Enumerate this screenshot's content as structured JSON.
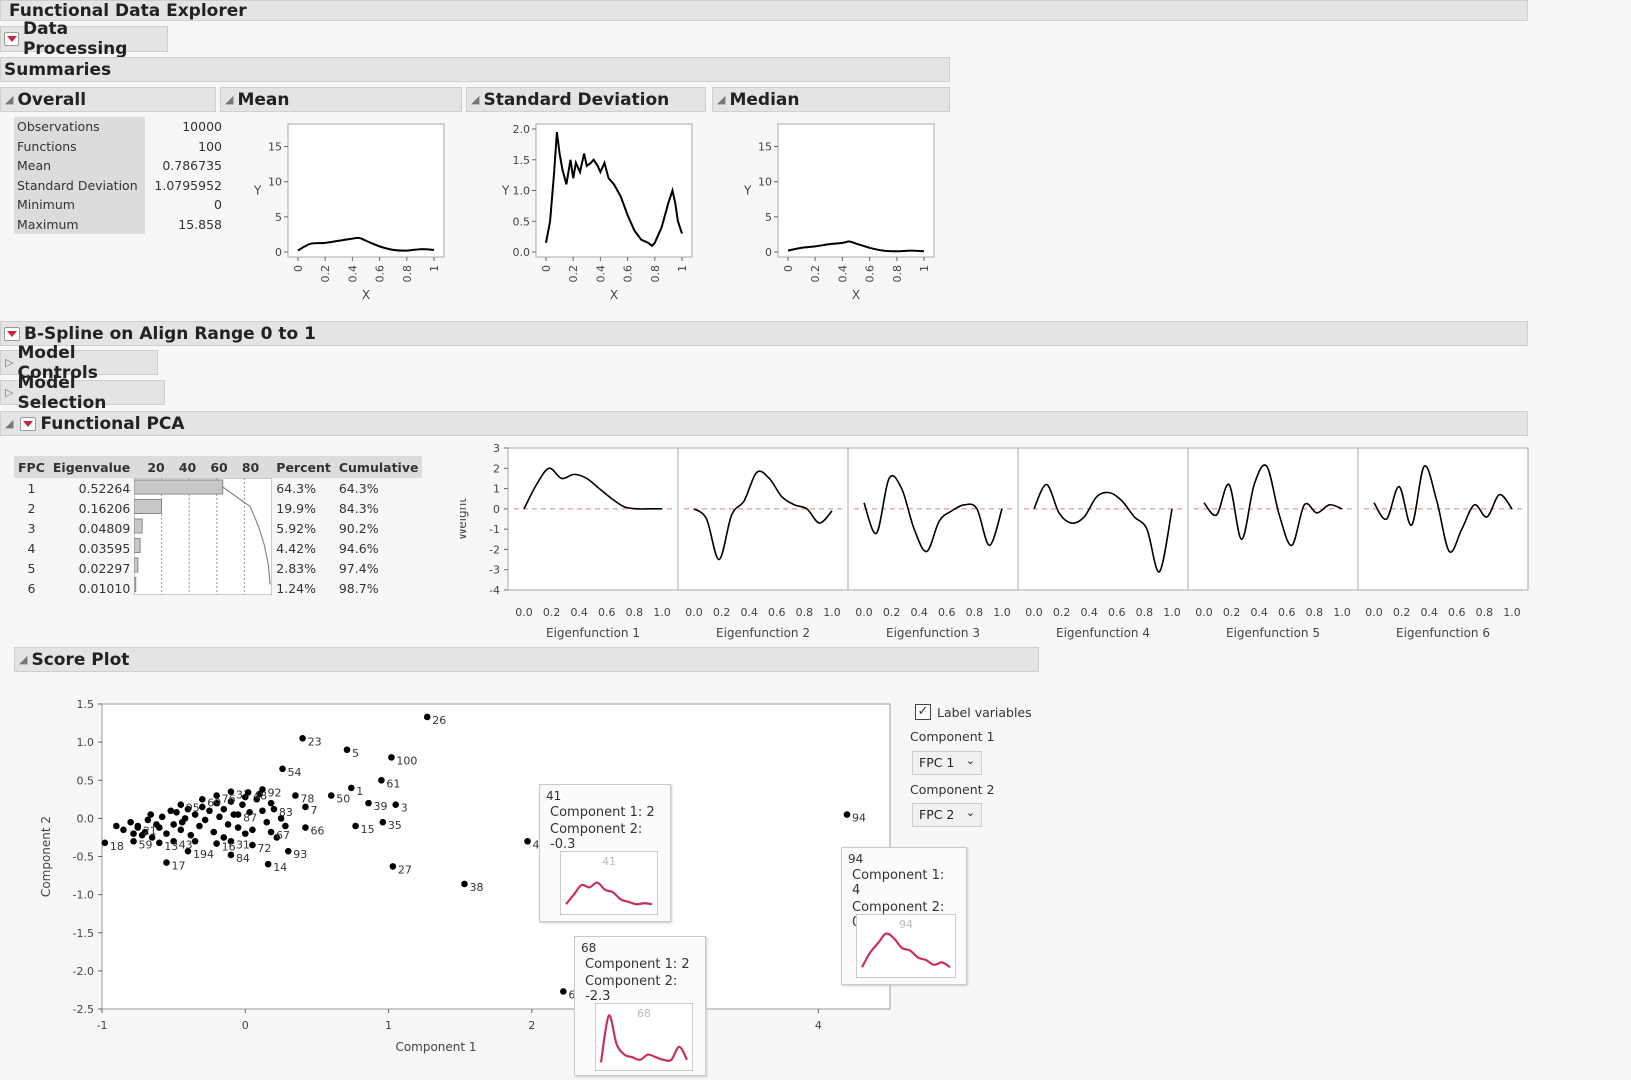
{
  "sections": {
    "fde": "Functional Data Explorer",
    "data_processing": "Data Processing",
    "summaries": "Summaries",
    "overall": "Overall",
    "mean": "Mean",
    "sd": "Standard Deviation",
    "median": "Median",
    "bspline": "B-Spline on Align Range 0 to 1",
    "model_controls": "Model Controls",
    "model_selection": "Model Selection",
    "fpca": "Functional PCA",
    "score_plot": "Score Plot"
  },
  "overall_stats": [
    {
      "label": "Observations",
      "value": "10000"
    },
    {
      "label": "Functions",
      "value": "100"
    },
    {
      "label": "Mean",
      "value": "0.786735"
    },
    {
      "label": "Standard Deviation",
      "value": "1.0795952"
    },
    {
      "label": "Minimum",
      "value": "0"
    },
    {
      "label": "Maximum",
      "value": "15.858"
    }
  ],
  "summary_plots": {
    "xlabel": "X",
    "ylabel": "Y",
    "x_ticks": [
      "0",
      "0.2",
      "0.4",
      "0.6",
      "0.8",
      "1"
    ],
    "mean": {
      "y_ticks": [
        "0",
        "5",
        "10",
        "15"
      ],
      "ylim": [
        0,
        17.5
      ],
      "x": [
        0,
        0.05,
        0.1,
        0.2,
        0.3,
        0.4,
        0.45,
        0.5,
        0.6,
        0.7,
        0.8,
        0.9,
        1.0
      ],
      "y": [
        0.2,
        0.8,
        1.2,
        1.3,
        1.6,
        1.9,
        2.0,
        1.6,
        0.8,
        0.3,
        0.2,
        0.4,
        0.3
      ]
    },
    "sd": {
      "y_ticks": [
        "0.0",
        "0.5",
        "1.0",
        "1.5",
        "2.0"
      ],
      "ylim": [
        0,
        2.0
      ],
      "x": [
        0,
        0.03,
        0.06,
        0.08,
        0.1,
        0.12,
        0.15,
        0.18,
        0.2,
        0.22,
        0.25,
        0.28,
        0.3,
        0.33,
        0.35,
        0.38,
        0.4,
        0.43,
        0.46,
        0.5,
        0.55,
        0.6,
        0.65,
        0.7,
        0.75,
        0.78,
        0.8,
        0.85,
        0.9,
        0.93,
        0.95,
        0.97,
        1.0
      ],
      "y": [
        0.15,
        0.5,
        1.3,
        1.95,
        1.6,
        1.35,
        1.1,
        1.5,
        1.2,
        1.45,
        1.3,
        1.6,
        1.4,
        1.45,
        1.5,
        1.4,
        1.3,
        1.45,
        1.2,
        1.1,
        0.9,
        0.6,
        0.35,
        0.2,
        0.15,
        0.1,
        0.15,
        0.4,
        0.8,
        1.0,
        0.8,
        0.5,
        0.3
      ]
    },
    "median": {
      "y_ticks": [
        "0",
        "5",
        "10",
        "15"
      ],
      "ylim": [
        0,
        17.5
      ],
      "x": [
        0,
        0.1,
        0.2,
        0.3,
        0.4,
        0.45,
        0.5,
        0.6,
        0.7,
        0.8,
        0.9,
        1.0
      ],
      "y": [
        0.2,
        0.6,
        0.8,
        1.1,
        1.3,
        1.5,
        1.2,
        0.6,
        0.2,
        0.1,
        0.2,
        0.1
      ]
    }
  },
  "fpca_table": {
    "headers": [
      "FPC",
      "Eigenvalue",
      "20",
      "40",
      "60",
      "80",
      "Percent",
      "Cumulative"
    ],
    "rows": [
      {
        "fpc": "1",
        "eigen": "0.52264",
        "percent": "64.3%",
        "cum": "64.3%",
        "pct": 64.3
      },
      {
        "fpc": "2",
        "eigen": "0.16206",
        "percent": "19.9%",
        "cum": "84.3%",
        "pct": 19.9
      },
      {
        "fpc": "3",
        "eigen": "0.04809",
        "percent": "5.92%",
        "cum": "90.2%",
        "pct": 5.92
      },
      {
        "fpc": "4",
        "eigen": "0.03595",
        "percent": "4.42%",
        "cum": "94.6%",
        "pct": 4.42
      },
      {
        "fpc": "5",
        "eigen": "0.02297",
        "percent": "2.83%",
        "cum": "97.4%",
        "pct": 2.83
      },
      {
        "fpc": "6",
        "eigen": "0.01010",
        "percent": "1.24%",
        "cum": "98.7%",
        "pct": 1.24
      }
    ]
  },
  "eigenfunctions": {
    "ylabel": "Weight",
    "y_ticks": [
      "3",
      "2",
      "1",
      "0",
      "-1",
      "-2",
      "-3",
      "-4"
    ],
    "ylim": [
      -4,
      3
    ],
    "x_ticks": [
      "0.0",
      "0.2",
      "0.4",
      "0.6",
      "0.8",
      "1.0"
    ],
    "titles": [
      "Eigenfunction 1",
      "Eigenfunction 2",
      "Eigenfunction 3",
      "Eigenfunction 4",
      "Eigenfunction 5",
      "Eigenfunction 6"
    ],
    "curves": [
      [
        0.0,
        1.2,
        2.0,
        1.5,
        1.7,
        1.5,
        1.0,
        0.5,
        0.1,
        0.0,
        0.0,
        0.0
      ],
      [
        0.0,
        -0.5,
        -2.5,
        -0.3,
        0.4,
        1.8,
        1.5,
        0.6,
        0.2,
        0.0,
        -0.7,
        -0.1
      ],
      [
        0.3,
        -1.2,
        1.5,
        1.0,
        -1.0,
        -2.1,
        -0.6,
        -0.1,
        0.2,
        0.0,
        -1.8,
        0.0
      ],
      [
        0.0,
        1.2,
        -0.2,
        -0.7,
        -0.4,
        0.6,
        0.8,
        0.4,
        -0.4,
        -1.0,
        -3.1,
        0.0
      ],
      [
        0.3,
        -0.3,
        1.2,
        -1.5,
        1.2,
        2.1,
        -0.3,
        -1.8,
        0.2,
        -0.2,
        0.2,
        0.0
      ],
      [
        0.3,
        -0.5,
        1.1,
        -0.8,
        2.1,
        0.4,
        -2.1,
        -1.0,
        0.2,
        -0.4,
        0.7,
        0.0
      ]
    ]
  },
  "score_plot": {
    "xlabel": "Component 1",
    "ylabel": "Component 2",
    "x_ticks": [
      "-1",
      "0",
      "1",
      "2",
      "3",
      "4"
    ],
    "x_tick_values": [
      -1,
      0,
      1,
      2,
      3,
      4
    ],
    "y_ticks": [
      "1.5",
      "1.0",
      "0.5",
      "0.0",
      "-0.5",
      "-1.0",
      "-1.5",
      "-2.0",
      "-2.5"
    ],
    "y_tick_values": [
      1.5,
      1.0,
      0.5,
      0.0,
      -0.5,
      -1.0,
      -1.5,
      -2.0,
      -2.5
    ],
    "xlim": [
      -1,
      4.5
    ],
    "ylim": [
      -2.5,
      1.5
    ],
    "labeled_points": [
      {
        "label": "26",
        "x": 1.27,
        "y": 1.33
      },
      {
        "label": "23",
        "x": 0.4,
        "y": 1.05
      },
      {
        "label": "5",
        "x": 0.71,
        "y": 0.9
      },
      {
        "label": "100",
        "x": 1.02,
        "y": 0.8
      },
      {
        "label": "54",
        "x": 0.26,
        "y": 0.65
      },
      {
        "label": "61",
        "x": 0.95,
        "y": 0.5
      },
      {
        "label": "1",
        "x": 0.74,
        "y": 0.4
      },
      {
        "label": "50",
        "x": 0.6,
        "y": 0.3
      },
      {
        "label": "39",
        "x": 0.86,
        "y": 0.2
      },
      {
        "label": "3",
        "x": 1.05,
        "y": 0.18
      },
      {
        "label": "78",
        "x": 0.35,
        "y": 0.3
      },
      {
        "label": "83",
        "x": 0.2,
        "y": 0.12
      },
      {
        "label": "7",
        "x": 0.42,
        "y": 0.15
      },
      {
        "label": "66",
        "x": 0.42,
        "y": -0.12
      },
      {
        "label": "15",
        "x": 0.77,
        "y": -0.1
      },
      {
        "label": "35",
        "x": 0.96,
        "y": -0.05
      },
      {
        "label": "67",
        "x": 0.18,
        "y": -0.18
      },
      {
        "label": "72",
        "x": 0.05,
        "y": -0.35
      },
      {
        "label": "93",
        "x": 0.3,
        "y": -0.43
      },
      {
        "label": "27",
        "x": 1.03,
        "y": -0.63
      },
      {
        "label": "38",
        "x": 1.53,
        "y": -0.86
      },
      {
        "label": "84",
        "x": -0.1,
        "y": -0.48
      },
      {
        "label": "14",
        "x": 0.16,
        "y": -0.6
      },
      {
        "label": "17",
        "x": -0.55,
        "y": -0.58
      },
      {
        "label": "194",
        "x": -0.4,
        "y": -0.43
      },
      {
        "label": "31",
        "x": -0.1,
        "y": -0.3
      },
      {
        "label": "16",
        "x": -0.2,
        "y": -0.33
      },
      {
        "label": "43",
        "x": -0.5,
        "y": -0.3
      },
      {
        "label": "13",
        "x": -0.6,
        "y": -0.32
      },
      {
        "label": "59",
        "x": -0.78,
        "y": -0.3
      },
      {
        "label": "18",
        "x": -0.98,
        "y": -0.32
      },
      {
        "label": "21",
        "x": -0.75,
        "y": -0.12
      },
      {
        "label": "95",
        "x": -0.45,
        "y": 0.18
      },
      {
        "label": "69",
        "x": -0.3,
        "y": 0.25
      },
      {
        "label": "76",
        "x": -0.2,
        "y": 0.3
      },
      {
        "label": "37",
        "x": -0.1,
        "y": 0.35
      },
      {
        "label": "48",
        "x": 0.02,
        "y": 0.34
      },
      {
        "label": "92",
        "x": 0.12,
        "y": 0.38
      },
      {
        "label": "87",
        "x": -0.05,
        "y": 0.05
      },
      {
        "label": "94",
        "x": 4.2,
        "y": 0.05
      },
      {
        "label": "41",
        "x": 1.97,
        "y": -0.3
      },
      {
        "label": "68",
        "x": 2.22,
        "y": -2.27
      }
    ],
    "cluster_points": [
      [
        -0.9,
        -0.1
      ],
      [
        -0.85,
        -0.15
      ],
      [
        -0.8,
        -0.05
      ],
      [
        -0.78,
        -0.2
      ],
      [
        -0.75,
        -0.1
      ],
      [
        -0.7,
        -0.18
      ],
      [
        -0.68,
        -0.02
      ],
      [
        -0.65,
        -0.25
      ],
      [
        -0.6,
        -0.12
      ],
      [
        -0.58,
        0.02
      ],
      [
        -0.55,
        -0.2
      ],
      [
        -0.5,
        -0.08
      ],
      [
        -0.48,
        0.08
      ],
      [
        -0.45,
        -0.15
      ],
      [
        -0.42,
        0.0
      ],
      [
        -0.4,
        0.12
      ],
      [
        -0.38,
        -0.22
      ],
      [
        -0.35,
        0.05
      ],
      [
        -0.32,
        -0.1
      ],
      [
        -0.3,
        0.15
      ],
      [
        -0.28,
        -0.02
      ],
      [
        -0.25,
        0.1
      ],
      [
        -0.22,
        -0.18
      ],
      [
        -0.2,
        0.2
      ],
      [
        -0.18,
        0.02
      ],
      [
        -0.15,
        0.12
      ],
      [
        -0.12,
        -0.08
      ],
      [
        -0.1,
        0.22
      ],
      [
        -0.08,
        0.05
      ],
      [
        -0.05,
        -0.12
      ],
      [
        -0.02,
        0.18
      ],
      [
        0.0,
        0.28
      ],
      [
        0.03,
        0.08
      ],
      [
        0.05,
        -0.15
      ],
      [
        0.08,
        0.25
      ],
      [
        0.1,
        0.32
      ],
      [
        0.12,
        0.1
      ],
      [
        0.15,
        -0.05
      ],
      [
        0.18,
        0.2
      ],
      [
        0.22,
        -0.25
      ],
      [
        0.25,
        0.0
      ],
      [
        0.28,
        -0.1
      ],
      [
        -0.62,
        -0.08
      ],
      [
        -0.72,
        -0.22
      ],
      [
        -0.52,
        0.1
      ],
      [
        -0.35,
        -0.3
      ],
      [
        -0.15,
        -0.25
      ],
      [
        0.0,
        -0.2
      ],
      [
        -0.66,
        0.05
      ],
      [
        -0.44,
        -0.05
      ]
    ],
    "side_panel": {
      "checkbox_label": "Label variables",
      "component1_label": "Component 1",
      "component1_value": "FPC 1",
      "component2_label": "Component 2",
      "component2_value": "FPC 2"
    },
    "tooltips": [
      {
        "id": "41",
        "line1": "Component 1: 2",
        "line2": "Component 2: -0.3"
      },
      {
        "id": "68",
        "line1": "Component 1: 2",
        "line2": "Component 2: -2.3"
      },
      {
        "id": "94",
        "line1": "Component 1: 4",
        "line2": "Component 2: 0.1"
      }
    ]
  },
  "colors": {
    "curve": "#000000",
    "tooltip_curve": "#c8325a",
    "refline": "#d98080"
  }
}
